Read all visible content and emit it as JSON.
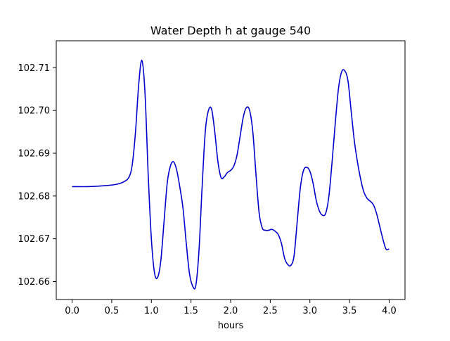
{
  "chart_data": {
    "type": "line",
    "title": "Water Depth h at gauge 540",
    "xlabel": "hours",
    "ylabel": "",
    "xlim": [
      -0.2,
      4.2
    ],
    "ylim": [
      102.6558,
      102.7163
    ],
    "xticks": [
      0.0,
      0.5,
      1.0,
      1.5,
      2.0,
      2.5,
      3.0,
      3.5,
      4.0
    ],
    "xtick_labels": [
      "0.0",
      "0.5",
      "1.0",
      "1.5",
      "2.0",
      "2.5",
      "3.0",
      "3.5",
      "4.0"
    ],
    "yticks": [
      102.66,
      102.67,
      102.68,
      102.69,
      102.7,
      102.71
    ],
    "ytick_labels": [
      "102.66",
      "102.67",
      "102.68",
      "102.69",
      "102.70",
      "102.71"
    ],
    "grid": false,
    "series": [
      {
        "color": "#0000cc",
        "x": [
          0.0,
          0.2,
          0.4,
          0.55,
          0.65,
          0.72,
          0.76,
          0.8,
          0.84,
          0.88,
          0.92,
          0.96,
          1.0,
          1.04,
          1.08,
          1.12,
          1.16,
          1.2,
          1.24,
          1.28,
          1.32,
          1.36,
          1.4,
          1.44,
          1.48,
          1.52,
          1.56,
          1.6,
          1.64,
          1.68,
          1.72,
          1.76,
          1.8,
          1.84,
          1.88,
          1.92,
          1.96,
          2.0,
          2.04,
          2.08,
          2.12,
          2.16,
          2.2,
          2.24,
          2.28,
          2.32,
          2.36,
          2.4,
          2.44,
          2.48,
          2.52,
          2.56,
          2.6,
          2.64,
          2.68,
          2.72,
          2.76,
          2.8,
          2.84,
          2.88,
          2.92,
          2.96,
          3.0,
          3.04,
          3.08,
          3.12,
          3.16,
          3.2,
          3.24,
          3.28,
          3.32,
          3.36,
          3.4,
          3.44,
          3.48,
          3.52,
          3.56,
          3.6,
          3.64,
          3.68,
          3.72,
          3.76,
          3.8,
          3.84,
          3.88,
          3.92,
          3.96,
          4.0
        ],
        "y": [
          102.6822,
          102.6822,
          102.6824,
          102.6827,
          102.6833,
          102.6845,
          102.6875,
          102.695,
          102.706,
          102.7117,
          102.704,
          102.685,
          102.67,
          102.662,
          102.661,
          102.665,
          102.674,
          102.683,
          102.687,
          102.688,
          102.686,
          102.682,
          102.677,
          102.669,
          102.662,
          102.659,
          102.659,
          102.667,
          102.682,
          102.695,
          102.7,
          102.7003,
          102.695,
          102.688,
          102.6843,
          102.6845,
          102.6855,
          102.686,
          102.687,
          102.6895,
          102.694,
          102.6985,
          102.7007,
          102.7,
          102.695,
          102.685,
          102.676,
          102.6725,
          102.672,
          102.672,
          102.6722,
          102.6718,
          102.671,
          102.669,
          102.6655,
          102.664,
          102.6638,
          102.666,
          102.674,
          102.682,
          102.686,
          102.6867,
          102.6858,
          102.683,
          102.679,
          102.6765,
          102.6755,
          102.676,
          102.68,
          102.688,
          102.697,
          102.705,
          102.709,
          102.7093,
          102.707,
          102.7,
          102.693,
          102.688,
          102.684,
          102.681,
          102.6795,
          102.6788,
          102.678,
          102.676,
          102.673,
          102.67,
          102.6676,
          102.6676
        ]
      }
    ]
  }
}
